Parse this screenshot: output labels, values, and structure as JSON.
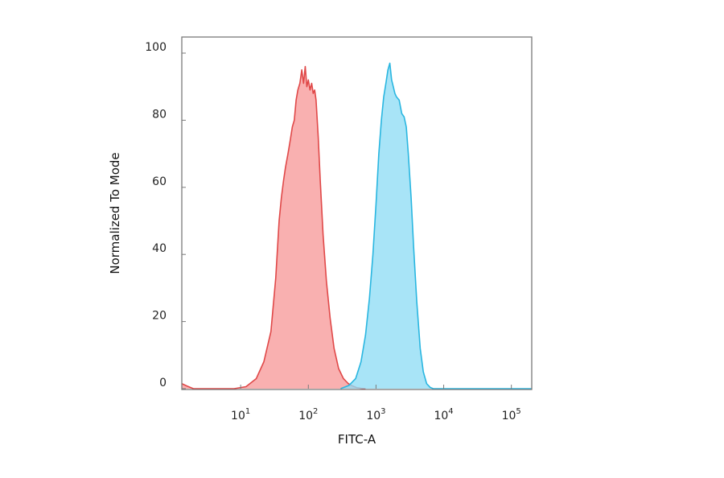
{
  "chart_data": {
    "type": "area",
    "xlabel": "FITC-A",
    "ylabel": "Normalized To Mode",
    "x_scale": "log",
    "xlim": [
      1.35,
      200000
    ],
    "ylim": [
      0,
      100
    ],
    "x_ticks": [
      {
        "value": 10,
        "base": "10",
        "exp": "1"
      },
      {
        "value": 100,
        "base": "10",
        "exp": "2"
      },
      {
        "value": 1000,
        "base": "10",
        "exp": "3"
      },
      {
        "value": 10000,
        "base": "10",
        "exp": "4"
      },
      {
        "value": 100000,
        "base": "10",
        "exp": "5"
      }
    ],
    "y_ticks": [
      "0",
      "20",
      "40",
      "60",
      "80",
      "100"
    ],
    "grid": false,
    "legend": "none",
    "series": [
      {
        "color": "#e04848",
        "fill": "#f79a9a",
        "x": [
          1.35,
          1.6,
          2.0,
          8,
          12,
          17,
          22,
          28,
          33,
          37,
          40,
          43,
          46,
          50,
          54,
          58,
          62,
          66,
          70,
          75,
          80,
          85,
          90,
          95,
          100,
          106,
          112,
          118,
          124,
          130,
          140,
          150,
          165,
          185,
          210,
          240,
          280,
          330,
          390,
          450,
          520,
          600,
          700
        ],
        "y": [
          1.5,
          0.8,
          0,
          0,
          0.6,
          3,
          8,
          17,
          33,
          50,
          57,
          62,
          66,
          70,
          74,
          78,
          80,
          86,
          89,
          91,
          95,
          91,
          96,
          90,
          92,
          89,
          91,
          88,
          89,
          86,
          75,
          62,
          46,
          32,
          21,
          12,
          6,
          3,
          1.5,
          0.8,
          0.3,
          0.1,
          0
        ]
      },
      {
        "color": "#29b6e0",
        "fill": "#8fdcf5",
        "x": [
          300,
          400,
          500,
          600,
          700,
          800,
          900,
          1000,
          1100,
          1200,
          1300,
          1400,
          1500,
          1600,
          1700,
          1800,
          1900,
          2000,
          2200,
          2400,
          2600,
          2800,
          3000,
          3300,
          3600,
          4000,
          4500,
          5000,
          5600,
          6300,
          7000,
          9000,
          200000
        ],
        "y": [
          0,
          1,
          3,
          8,
          16,
          27,
          40,
          55,
          70,
          80,
          87,
          91,
          95,
          97,
          92,
          90,
          88,
          87,
          86,
          82,
          81,
          78,
          70,
          57,
          42,
          26,
          12,
          5,
          1.5,
          0.4,
          0,
          0,
          0
        ]
      }
    ]
  }
}
